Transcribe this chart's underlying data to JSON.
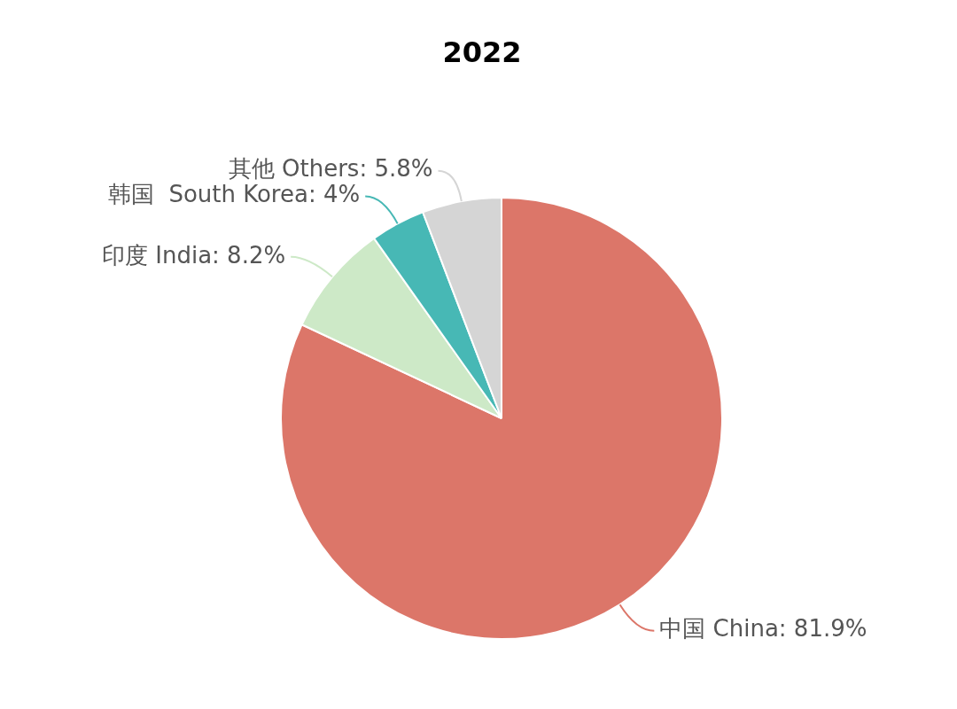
{
  "chart_data": {
    "type": "pie",
    "title": "2022",
    "categories": [
      "中国 China",
      "印度 India",
      "韩国  South Korea",
      "其他 Others"
    ],
    "values": [
      81.9,
      8.2,
      4,
      5.8
    ],
    "value_labels": [
      "81.9%",
      "8.2%",
      "4%",
      "5.8%"
    ],
    "colors": [
      "#dc7669",
      "#cde9c7",
      "#47b8b5",
      "#d5d5d5"
    ],
    "legend": false
  }
}
